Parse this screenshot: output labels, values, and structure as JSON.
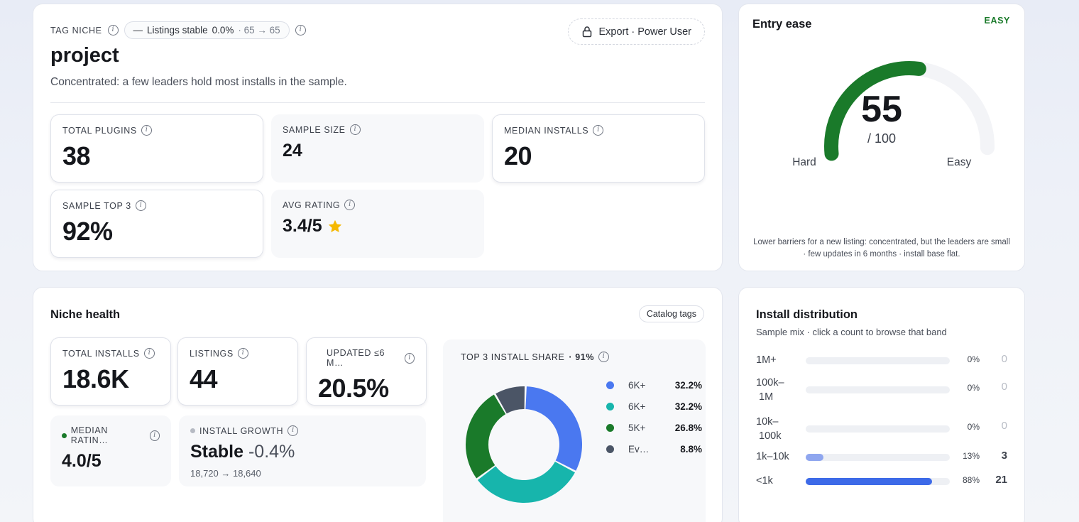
{
  "overview": {
    "tag_label": "TAG NICHE",
    "pill_text": "Listings stable",
    "pill_pct": "0.0%",
    "pill_range": "· 65 → 65",
    "export_label": "Export · Power User",
    "title": "project",
    "description": "Concentrated: a few leaders hold most installs in the sample.",
    "stats": [
      {
        "label": "TOTAL PLUGINS",
        "value": "38"
      },
      {
        "label": "SAMPLE SIZE",
        "value": "24"
      },
      {
        "label": "MEDIAN INSTALLS",
        "value": "20"
      },
      {
        "label": "SAMPLE TOP 3",
        "value": "92%"
      },
      {
        "label": "AVG RATING",
        "value": "3.4/5"
      }
    ]
  },
  "ease": {
    "title": "Entry ease",
    "badge": "EASY",
    "score": "55",
    "score_value": 55,
    "max": "/ 100",
    "low": "Hard",
    "high": "Easy",
    "footer": "Lower barriers for a new listing: concentrated, but the leaders are small · few updates in 6 months · install base flat.",
    "color": "#1a7a2a"
  },
  "health": {
    "title": "Niche health",
    "catalog_button": "Catalog tags",
    "stats": [
      {
        "label": "TOTAL INSTALLS",
        "value": "18.6K"
      },
      {
        "label": "LISTINGS",
        "value": "44"
      },
      {
        "label": "UPDATED ≤6 M…",
        "value": "20.5%"
      }
    ],
    "median_rating": {
      "label": "MEDIAN RATIN…",
      "value": "4.0/5",
      "dot_color": "#1a7a2a"
    },
    "install_growth": {
      "label": "INSTALL GROWTH",
      "value": "Stable",
      "delta": "-0.4%",
      "range": "18,720 → 18,640",
      "dot_color": "#b6bac3"
    },
    "top3": {
      "label": "TOP 3 INSTALL SHARE",
      "value": "· 91%"
    }
  },
  "chart_data": {
    "type": "pie",
    "title": "TOP 3 INSTALL SHARE · 91%",
    "categories": [
      "6K+",
      "6K+",
      "5K+",
      "Ev…"
    ],
    "values": [
      32.2,
      32.2,
      26.8,
      8.8
    ],
    "labels": [
      "32.2%",
      "32.2%",
      "26.8%",
      "8.8%"
    ],
    "colors": [
      "#4a78f0",
      "#17b5ac",
      "#1a7a2a",
      "#4b5566"
    ]
  },
  "distribution": {
    "title": "Install distribution",
    "subtitle": "Sample mix · click a count to browse that band",
    "bands": [
      {
        "label": "1M+",
        "pct": "0%",
        "count": "0",
        "fraction": 0,
        "color": "#3d6ae8"
      },
      {
        "label": "100k–1M",
        "pct": "0%",
        "count": "0",
        "fraction": 0,
        "color": "#3d6ae8"
      },
      {
        "label": "10k–100k",
        "pct": "0%",
        "count": "0",
        "fraction": 0,
        "color": "#3d6ae8"
      },
      {
        "label": "1k–10k",
        "pct": "13%",
        "count": "3",
        "fraction": 0.125,
        "color": "#8fa6ef"
      },
      {
        "label": "<1k",
        "pct": "88%",
        "count": "21",
        "fraction": 0.875,
        "color": "#3d6ae8"
      }
    ]
  }
}
